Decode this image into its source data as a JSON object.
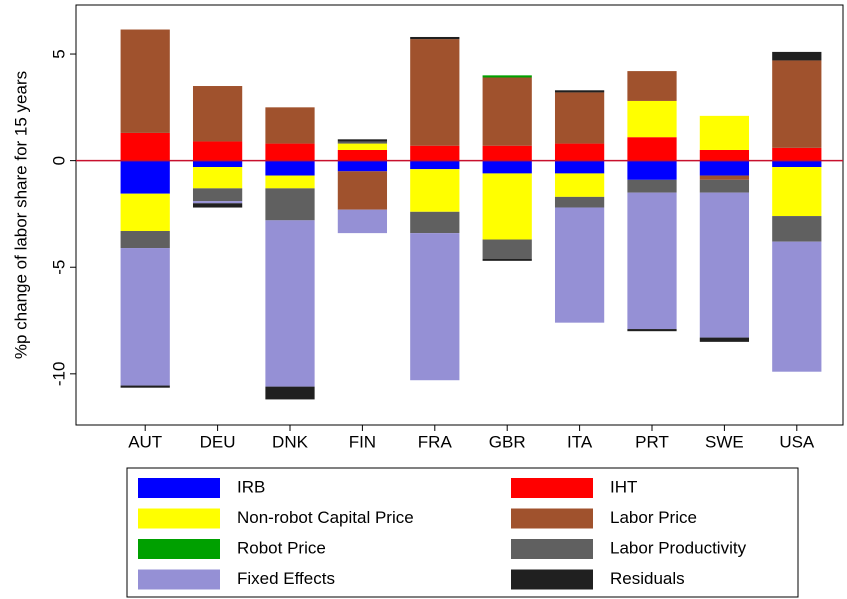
{
  "chart_data": {
    "type": "stacked_bar",
    "y_label": "%p change of labor share for 15 years",
    "categories": [
      "AUT",
      "DEU",
      "DNK",
      "FIN",
      "FRA",
      "GBR",
      "ITA",
      "PRT",
      "SWE",
      "USA"
    ],
    "series": [
      {
        "name": "IRB",
        "color": "#0000ff",
        "values": [
          -1.55,
          -0.3,
          -0.7,
          -0.5,
          -0.4,
          -0.6,
          -0.6,
          -0.9,
          -0.7,
          -0.3
        ]
      },
      {
        "name": "IHT",
        "color": "#ff0000",
        "values": [
          1.3,
          0.9,
          0.8,
          0.5,
          0.7,
          0.7,
          0.8,
          1.1,
          0.5,
          0.6
        ]
      },
      {
        "name": "Non-robot Capital Price",
        "color": "#ffff00",
        "values": [
          -1.75,
          -1.0,
          -0.6,
          0.3,
          -2.0,
          -3.1,
          -1.1,
          1.7,
          1.6,
          -2.3
        ]
      },
      {
        "name": "Labor Price",
        "color": "#a0522d",
        "values": [
          4.85,
          2.6,
          1.7,
          -1.8,
          5.0,
          3.2,
          2.4,
          1.4,
          -0.2,
          4.1
        ]
      },
      {
        "name": "Robot Price",
        "color": "#00a000",
        "values": [
          0,
          0,
          0,
          0,
          0,
          0.1,
          0,
          0,
          0,
          0
        ]
      },
      {
        "name": "Labor Productivity",
        "color": "#606060",
        "values": [
          -0.8,
          -0.6,
          -1.5,
          0.1,
          -1.0,
          -0.9,
          -0.5,
          -0.6,
          -0.6,
          -1.2
        ]
      },
      {
        "name": "Fixed Effects",
        "color": "#9590d5",
        "values": [
          -6.45,
          -0.1,
          -7.8,
          -1.1,
          -6.9,
          0,
          -5.4,
          -6.4,
          -6.8,
          -6.1
        ]
      },
      {
        "name": "Residuals",
        "color": "#202020",
        "values": [
          -0.1,
          -0.2,
          -0.6,
          0.1,
          0.1,
          -0.1,
          0.1,
          -0.1,
          -0.2,
          0.4
        ]
      }
    ],
    "ylim": [
      -12.4,
      7.3
    ],
    "yticks": [
      5,
      0,
      -5,
      -10
    ],
    "zero_line_color": "#c8102e"
  }
}
